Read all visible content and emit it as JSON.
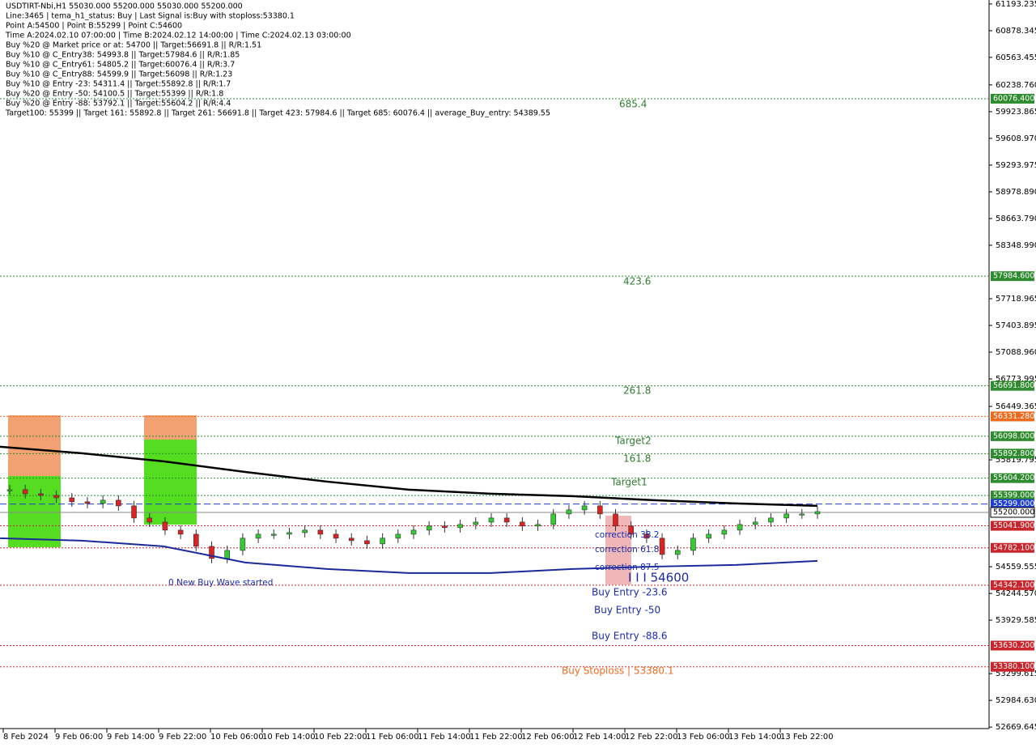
{
  "info_lines": [
    "USDTIRT-Nbi,H1  55030.000 55200.000 55030.000 55200.000",
    "Line:3465 | tema_h1_status: Buy | Last Signal is:Buy with stoploss:53380.1",
    "Point A:54500 | Point B:55299 | Point C:54600",
    "Time A:2024.02.10 07:00:00 | Time B:2024.02.12 14:00:00 | Time C:2024.02.13 03:00:00",
    "Buy %20 @ Market price or at: 54700 || Target:56691.8 || R/R:1.51",
    "Buy %10 @ C_Entry38: 54993.8 || Target:57984.6 || R/R:1.85",
    "Buy %10 @ C_Entry61: 54805.2 || Target:60076.4 || R/R:3.7",
    "Buy %10 @ C_Entry88: 54599.9 || Target:56098 || R/R:1.23",
    "Buy %10 @ Entry -23: 54311.4 || Target:55892.8 || R/R:1.7",
    "Buy %20 @ Entry -50: 54100.5 || Target:55399 || R/R:1.8",
    "Buy %20 @ Entry -88: 53792.1 || Target:55604.2 || R/R:4.4",
    "Target100: 55399 || Target 161: 55892.8 || Target 261: 56691.8 || Target 423: 57984.6 || Target 685: 60076.4 || average_Buy_entry: 54389.55"
  ],
  "chart_data": {
    "type": "candlestick",
    "ylim": [
      52630,
      61240
    ],
    "yticks": [
      61193.235,
      60878.345,
      60563.455,
      {
        "value": 60238.76,
        "label": "60238.760"
      },
      59923.865,
      {
        "value": 59608.97,
        "label": "59608.970"
      },
      59293.975,
      {
        "value": 58978.89,
        "label": "58978.890"
      },
      {
        "value": 58663.79,
        "label": "58663.790"
      },
      {
        "value": 58348.99,
        "label": "58348.990"
      },
      57718.965,
      57403.895,
      {
        "value": 57088.96,
        "label": "57088.960"
      },
      56773.995,
      56449.365,
      55819.795,
      54559.555,
      {
        "value": 54244.57,
        "label": "54244.570"
      },
      53929.585,
      53299.615,
      {
        "value": 52984.63,
        "label": "52984.630"
      },
      52669.645
    ],
    "time_labels": [
      "8 Feb 2024",
      "9 Feb 06:00",
      "9 Feb 14:00",
      "9 Feb 22:00",
      "10 Feb 06:00",
      "10 Feb 14:00",
      "10 Feb 22:00",
      "11 Feb 06:00",
      "11 Feb 14:00",
      "11 Feb 22:00",
      "12 Feb 06:00",
      "12 Feb 14:00",
      "12 Feb 22:00",
      "13 Feb 06:00",
      "13 Feb 14:00",
      "13 Feb 22:00"
    ],
    "closes": [
      55468,
      55420,
      55401,
      55372,
      55325,
      55306,
      55344,
      55277,
      55134,
      55086,
      54991,
      54943,
      54800,
      54657,
      54752,
      54896,
      54943,
      54943,
      54962,
      54991,
      54943,
      54896,
      54867,
      54829,
      54896,
      54943,
      54991,
      55039,
      55020,
      55058,
      55086,
      55134,
      55086,
      55039,
      55058,
      55182,
      55230,
      55277,
      55182,
      55039,
      54943,
      54896,
      54704,
      54752,
      54896,
      54943,
      54991,
      55058,
      55086,
      55134,
      55182,
      55182,
      55210
    ],
    "ma_slow": [
      55974,
      55897,
      55802,
      55677,
      55563,
      55468,
      55420,
      55392,
      55344,
      55306,
      55277
    ],
    "ma_fast": [
      54896,
      54867,
      54800,
      54609,
      54533,
      54485,
      54485,
      54533,
      54561,
      54581,
      54628
    ],
    "levels": [
      {
        "value": 60076.4,
        "label": "60076.400",
        "color": "#2e8b2e"
      },
      {
        "value": 57984.6,
        "label": "57984.600",
        "color": "#2e8b2e"
      },
      {
        "value": 56691.8,
        "label": "56691.800",
        "color": "#2e8b2e"
      },
      {
        "value": 56331.28,
        "label": "56331.280",
        "color": "#f06a1e"
      },
      {
        "value": 56098,
        "label": "56098.000",
        "color": "#2e8b2e"
      },
      {
        "value": 55892.8,
        "label": "55892.800",
        "color": "#2e8b2e"
      },
      {
        "value": 55604.2,
        "label": "55604.200",
        "color": "#2e8b2e"
      },
      {
        "value": 55399,
        "label": "55399.000",
        "color": "#2e8b2e"
      },
      {
        "value": 55299,
        "label": "55299.000",
        "color": "#1f3fd6"
      },
      {
        "value": 55200,
        "label": "55200.000",
        "color": "#000000"
      },
      {
        "value": 55041.9,
        "label": "55041.900",
        "color": "#c8252c"
      },
      {
        "value": 54782.1,
        "label": "54782.100",
        "color": "#c8252c"
      },
      {
        "value": 54342.1,
        "label": "54342.100",
        "color": "#c8252c"
      },
      {
        "value": 53630.2,
        "label": "53630.200",
        "color": "#c8252c"
      },
      {
        "value": 53380.1,
        "label": "53380.100",
        "color": "#c8252c"
      }
    ],
    "annotations": [
      "685.4",
      "423.6",
      "261.8",
      "Target2",
      "161.8",
      "Target1",
      "Buy Entry -23.6",
      "Buy Entry -50",
      "Buy Entry -88.6",
      "Buy Stoploss | 53380.1",
      "correction 38.2",
      "correction 61.8",
      "correction 87.5",
      "0 New Buy Wave started",
      "I I I 54600"
    ]
  }
}
